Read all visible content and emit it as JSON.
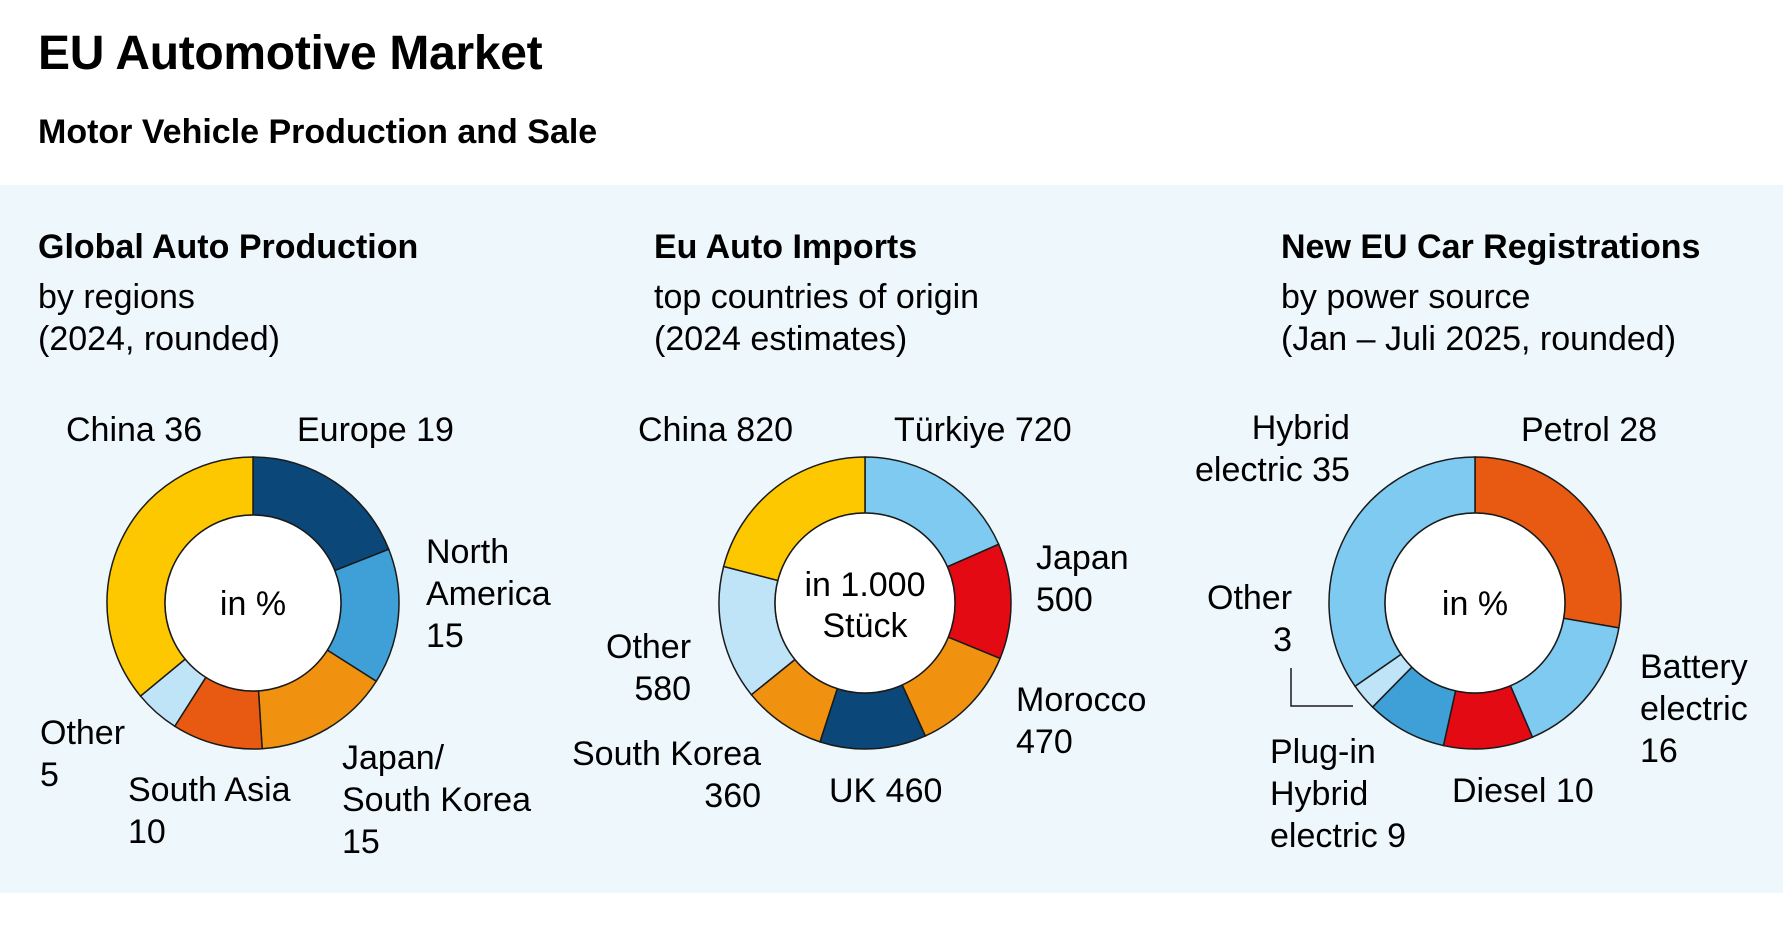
{
  "header": {
    "title": "EU Automotive Market",
    "subtitle": "Motor Vehicle Production and Sale"
  },
  "chart_data": [
    {
      "type": "pie",
      "donut": true,
      "title": "Global Auto Production",
      "subtitle_line1": "by regions",
      "subtitle_line2": "(2024, rounded)",
      "center_label": "in %",
      "slices": [
        {
          "name": "Europe",
          "value": 19,
          "color": "#0b4779",
          "label": "Europe 19"
        },
        {
          "name": "North America",
          "value": 15,
          "color": "#3ea0d6",
          "label": "North\nAmerica\n15"
        },
        {
          "name": "Japan/South Korea",
          "value": 15,
          "color": "#f0920f",
          "label": "Japan/\nSouth Korea\n15"
        },
        {
          "name": "South Asia",
          "value": 10,
          "color": "#e85a12",
          "label": "South Asia\n10"
        },
        {
          "name": "Other",
          "value": 5,
          "color": "#bfe3f7",
          "label": "Other\n5"
        },
        {
          "name": "China",
          "value": 36,
          "color": "#fdc800",
          "label": "China 36"
        }
      ]
    },
    {
      "type": "pie",
      "donut": true,
      "title": "Eu Auto Imports",
      "subtitle_line1": "top countries of origin",
      "subtitle_line2": "(2024 estimates)",
      "center_label_line1": "in 1.000",
      "center_label_line2": "Stück",
      "slices": [
        {
          "name": "Türkiye",
          "value": 720,
          "color": "#7fcaf1",
          "label": "Türkiye 720"
        },
        {
          "name": "Japan",
          "value": 500,
          "color": "#e30a14",
          "label": "Japan\n500"
        },
        {
          "name": "Morocco",
          "value": 470,
          "color": "#f0920f",
          "label": "Morocco\n470"
        },
        {
          "name": "UK",
          "value": 460,
          "color": "#0b4779",
          "label": "UK 460"
        },
        {
          "name": "South Korea",
          "value": 360,
          "color": "#f0920f",
          "label": "South Korea\n360"
        },
        {
          "name": "Other",
          "value": 580,
          "color": "#bfe3f7",
          "label": "Other\n580"
        },
        {
          "name": "China",
          "value": 820,
          "color": "#fdc800",
          "label": "China 820"
        }
      ]
    },
    {
      "type": "pie",
      "donut": true,
      "title": "New EU Car Registrations",
      "subtitle_line1": "by power source",
      "subtitle_line2": "(Jan – Juli 2025, rounded)",
      "center_label": "in %",
      "slices": [
        {
          "name": "Petrol",
          "value": 28,
          "color": "#e85a12",
          "label": "Petrol 28"
        },
        {
          "name": "Battery electric",
          "value": 16,
          "color": "#7fcaf1",
          "label": "Battery\nelectric\n16"
        },
        {
          "name": "Diesel",
          "value": 10,
          "color": "#e30a14",
          "label": "Diesel 10"
        },
        {
          "name": "Plug-in Hybrid electric",
          "value": 9,
          "color": "#3ea0d6",
          "label": "Plug-in\nHybrid\nelectric 9"
        },
        {
          "name": "Other",
          "value": 3,
          "color": "#bfe3f7",
          "label": "Other\n3"
        },
        {
          "name": "Hybrid electric",
          "value": 35,
          "color": "#7fcaf1",
          "label": "Hybrid\nelectric 35"
        }
      ]
    }
  ]
}
